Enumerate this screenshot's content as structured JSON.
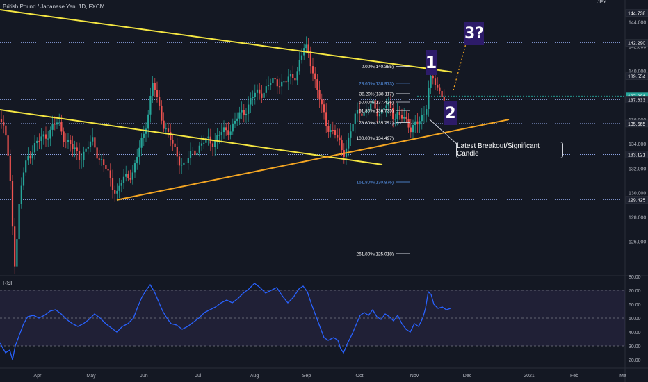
{
  "header": {
    "title": "British Pound / Japanese Yen, 1D, FXCM"
  },
  "currency_tag": "JPY",
  "colors": {
    "bg": "#141823",
    "up": "#26a69a",
    "down": "#ef5350",
    "trend_yellow": "#f5e642",
    "trend_orange": "#f5a623",
    "rsi_line": "#2962ff",
    "rsi_band": "#7e57c2",
    "annotation_bg": "#2d1b69"
  },
  "annotations": {
    "wave1": "1",
    "wave2": "2",
    "wave3": "3?",
    "callout": "Latest Breakout/Significant Candle"
  },
  "rsi": {
    "label": "RSI"
  },
  "chart_data": [
    {
      "type": "candlestick",
      "title": "British Pound / Japanese Yen, 1D, FXCM",
      "x_ticks": [
        "Apr",
        "May",
        "Jun",
        "Jul",
        "Aug",
        "Sep",
        "Oct",
        "Nov",
        "Dec",
        "2021",
        "Feb",
        "Ma"
      ],
      "y_ticks": [
        "144.000",
        "142.000",
        "140.000",
        "138.000",
        "136.000",
        "134.000",
        "132.000",
        "130.000",
        "128.000",
        "126.000"
      ],
      "ylim": [
        123.3,
        145.8
      ],
      "price_labels": [
        "144.738",
        "142.290",
        "139.554",
        "137.921",
        "137.633",
        "135.665",
        "133.121",
        "129.425"
      ],
      "current_price": "137.921",
      "fibonacci": [
        {
          "label": "0.00%(140.355)",
          "value": 140.355
        },
        {
          "label": "23.60%(138.973)",
          "value": 138.973
        },
        {
          "label": "38.20%(138.117)",
          "value": 138.117
        },
        {
          "label": "50.00%(137.426)",
          "value": 137.426
        },
        {
          "label": "61.80%(136.735)",
          "value": 136.735
        },
        {
          "label": "78.60%(135.751)",
          "value": 135.751
        },
        {
          "label": "100.00%(134.497)",
          "value": 134.497
        },
        {
          "label": "161.80%(130.876)",
          "value": 130.876
        },
        {
          "label": "261.80%(125.018)",
          "value": 125.018
        }
      ],
      "close_path": [
        [
          0,
          136.0
        ],
        [
          8,
          134.8
        ],
        [
          14,
          131.5
        ],
        [
          18,
          127.5
        ],
        [
          22,
          123.8
        ],
        [
          26,
          128.0
        ],
        [
          32,
          131.0
        ],
        [
          40,
          133.0
        ],
        [
          48,
          133.8
        ],
        [
          58,
          134.2
        ],
        [
          66,
          134.8
        ],
        [
          76,
          135.4
        ],
        [
          84,
          135.6
        ],
        [
          94,
          134.5
        ],
        [
          104,
          133.5
        ],
        [
          114,
          133.1
        ],
        [
          124,
          133.4
        ],
        [
          134,
          134.3
        ],
        [
          142,
          133.0
        ],
        [
          152,
          131.8
        ],
        [
          160,
          131.0
        ],
        [
          168,
          130.0
        ],
        [
          176,
          130.8
        ],
        [
          184,
          131.5
        ],
        [
          192,
          131.8
        ],
        [
          198,
          133.0
        ],
        [
          206,
          134.6
        ],
        [
          214,
          137.0
        ],
        [
          220,
          139.0
        ],
        [
          226,
          137.5
        ],
        [
          234,
          136.0
        ],
        [
          242,
          134.8
        ],
        [
          250,
          133.5
        ],
        [
          258,
          132.8
        ],
        [
          266,
          132.2
        ],
        [
          274,
          133.0
        ],
        [
          282,
          133.7
        ],
        [
          290,
          133.9
        ],
        [
          298,
          134.2
        ],
        [
          306,
          134.3
        ],
        [
          314,
          134.6
        ],
        [
          322,
          134.9
        ],
        [
          330,
          135.3
        ],
        [
          338,
          135.8
        ],
        [
          346,
          136.3
        ],
        [
          354,
          137.0
        ],
        [
          362,
          137.8
        ],
        [
          370,
          138.0
        ],
        [
          378,
          138.4
        ],
        [
          386,
          138.8
        ],
        [
          394,
          139.0
        ],
        [
          402,
          139.2
        ],
        [
          410,
          139.0
        ],
        [
          418,
          139.3
        ],
        [
          426,
          139.9
        ],
        [
          432,
          141.0
        ],
        [
          438,
          141.8
        ],
        [
          444,
          141.4
        ],
        [
          450,
          140.2
        ],
        [
          456,
          138.5
        ],
        [
          462,
          137.0
        ],
        [
          468,
          135.8
        ],
        [
          474,
          135.4
        ],
        [
          480,
          135.0
        ],
        [
          486,
          134.2
        ],
        [
          490,
          133.5
        ],
        [
          494,
          133.3
        ],
        [
          500,
          134.3
        ],
        [
          506,
          135.3
        ],
        [
          512,
          136.2
        ],
        [
          518,
          136.9
        ],
        [
          524,
          136.6
        ],
        [
          530,
          136.8
        ],
        [
          536,
          137.1
        ],
        [
          542,
          136.8
        ],
        [
          548,
          136.7
        ],
        [
          554,
          137.1
        ],
        [
          560,
          136.9
        ],
        [
          566,
          136.3
        ],
        [
          572,
          136.7
        ],
        [
          578,
          136.1
        ],
        [
          584,
          135.6
        ],
        [
          590,
          135.4
        ],
        [
          596,
          135.9
        ],
        [
          602,
          135.6
        ],
        [
          608,
          135.9
        ],
        [
          612,
          136.6
        ],
        [
          616,
          138.9
        ],
        [
          620,
          139.7
        ],
        [
          624,
          139.3
        ],
        [
          628,
          138.3
        ],
        [
          632,
          137.9
        ],
        [
          636,
          138.1
        ],
        [
          640,
          138.0
        ]
      ],
      "trendlines": [
        {
          "name": "upper_resistance",
          "points": [
            [
              0,
              145.0
            ],
            [
              650,
              139.9
            ]
          ]
        },
        {
          "name": "lower_resistance",
          "points": [
            [
              0,
              136.8
            ],
            [
              550,
              132.3
            ]
          ]
        },
        {
          "name": "support",
          "points": [
            [
              168,
              129.4
            ],
            [
              732,
              136.0
            ]
          ]
        }
      ],
      "projection": [
        [
          652,
          138.4
        ],
        [
          670,
          142.2
        ]
      ]
    },
    {
      "type": "line",
      "title": "RSI",
      "ylim": [
        15,
        80
      ],
      "y_ticks": [
        "80.00",
        "70.00",
        "60.00",
        "50.00",
        "40.00",
        "30.00",
        "20.00"
      ],
      "overbought": 70,
      "oversold": 30,
      "values": [
        [
          0,
          32
        ],
        [
          8,
          25
        ],
        [
          14,
          27
        ],
        [
          18,
          20
        ],
        [
          22,
          30
        ],
        [
          28,
          38
        ],
        [
          34,
          46
        ],
        [
          40,
          51
        ],
        [
          48,
          52
        ],
        [
          56,
          50
        ],
        [
          64,
          52
        ],
        [
          72,
          55
        ],
        [
          80,
          56
        ],
        [
          88,
          53
        ],
        [
          96,
          49
        ],
        [
          104,
          46
        ],
        [
          112,
          44
        ],
        [
          120,
          46
        ],
        [
          128,
          49
        ],
        [
          136,
          53
        ],
        [
          144,
          50
        ],
        [
          152,
          46
        ],
        [
          160,
          43
        ],
        [
          168,
          40
        ],
        [
          176,
          44
        ],
        [
          184,
          46
        ],
        [
          192,
          50
        ],
        [
          198,
          58
        ],
        [
          204,
          65
        ],
        [
          210,
          70
        ],
        [
          216,
          74
        ],
        [
          222,
          69
        ],
        [
          228,
          62
        ],
        [
          234,
          55
        ],
        [
          240,
          50
        ],
        [
          246,
          46
        ],
        [
          254,
          45
        ],
        [
          262,
          42
        ],
        [
          270,
          44
        ],
        [
          278,
          47
        ],
        [
          286,
          50
        ],
        [
          294,
          54
        ],
        [
          302,
          56
        ],
        [
          310,
          58
        ],
        [
          318,
          61
        ],
        [
          326,
          63
        ],
        [
          334,
          61
        ],
        [
          342,
          64
        ],
        [
          350,
          68
        ],
        [
          358,
          71
        ],
        [
          366,
          75
        ],
        [
          374,
          72
        ],
        [
          382,
          68
        ],
        [
          390,
          70
        ],
        [
          398,
          72
        ],
        [
          406,
          66
        ],
        [
          414,
          61
        ],
        [
          422,
          65
        ],
        [
          430,
          71
        ],
        [
          436,
          73
        ],
        [
          442,
          69
        ],
        [
          448,
          60
        ],
        [
          454,
          52
        ],
        [
          460,
          44
        ],
        [
          466,
          36
        ],
        [
          472,
          34
        ],
        [
          480,
          36
        ],
        [
          486,
          34
        ],
        [
          490,
          28
        ],
        [
          494,
          25
        ],
        [
          500,
          32
        ],
        [
          506,
          38
        ],
        [
          512,
          45
        ],
        [
          518,
          52
        ],
        [
          524,
          54
        ],
        [
          530,
          52
        ],
        [
          536,
          56
        ],
        [
          542,
          51
        ],
        [
          548,
          49
        ],
        [
          554,
          53
        ],
        [
          560,
          51
        ],
        [
          566,
          48
        ],
        [
          572,
          52
        ],
        [
          578,
          46
        ],
        [
          584,
          42
        ],
        [
          590,
          40
        ],
        [
          596,
          46
        ],
        [
          602,
          44
        ],
        [
          608,
          50
        ],
        [
          612,
          57
        ],
        [
          616,
          69
        ],
        [
          620,
          67
        ],
        [
          624,
          60
        ],
        [
          630,
          57
        ],
        [
          636,
          58
        ],
        [
          642,
          56
        ],
        [
          648,
          57
        ]
      ]
    }
  ]
}
